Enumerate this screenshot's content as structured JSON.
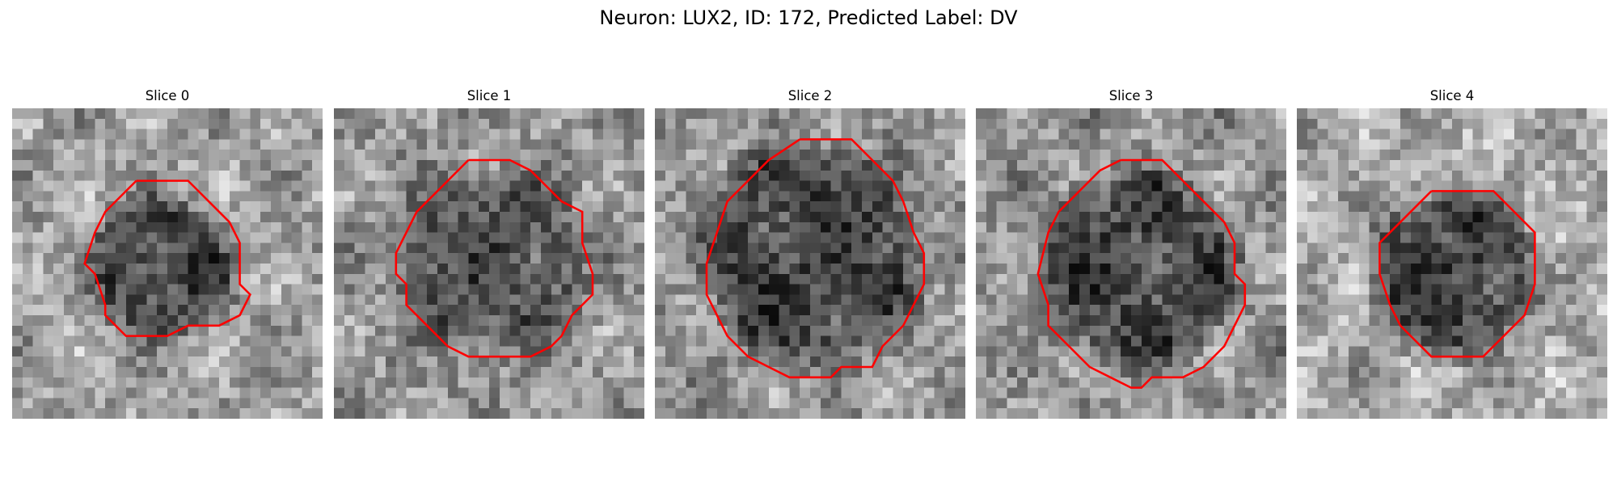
{
  "figure": {
    "title": "Neuron: LUX2, ID: 172, Predicted Label: DV",
    "outline_color": "#ff0000"
  },
  "panels": [
    {
      "title": "Slice 0",
      "image": {
        "grid_size": 30,
        "seed": 11,
        "center": [
          14.5,
          15.5
        ],
        "radius": 6.8,
        "base": 160,
        "inner": 70
      },
      "contour": [
        [
          12,
          7
        ],
        [
          17,
          7
        ],
        [
          18,
          8
        ],
        [
          19,
          9
        ],
        [
          21,
          11
        ],
        [
          22,
          13
        ],
        [
          22,
          17
        ],
        [
          23,
          18
        ],
        [
          22,
          20
        ],
        [
          20,
          21
        ],
        [
          17,
          21
        ],
        [
          15,
          22
        ],
        [
          14,
          22
        ],
        [
          11,
          22
        ],
        [
          10,
          21
        ],
        [
          9,
          20
        ],
        [
          9,
          19
        ],
        [
          8,
          16
        ],
        [
          7,
          15
        ],
        [
          8,
          12
        ],
        [
          9,
          10
        ],
        [
          11,
          8
        ],
        [
          12,
          7
        ]
      ]
    },
    {
      "title": "Slice 1",
      "image": {
        "grid_size": 30,
        "seed": 23,
        "center": [
          15,
          15
        ],
        "radius": 9.0,
        "base": 150,
        "inner": 85
      },
      "contour": [
        [
          13,
          5
        ],
        [
          17,
          5
        ],
        [
          19,
          6
        ],
        [
          22,
          9
        ],
        [
          24,
          10
        ],
        [
          24,
          13
        ],
        [
          25,
          16
        ],
        [
          25,
          18
        ],
        [
          23,
          20
        ],
        [
          22,
          22
        ],
        [
          21,
          23
        ],
        [
          19,
          24
        ],
        [
          13,
          24
        ],
        [
          11,
          23
        ],
        [
          9,
          21
        ],
        [
          7,
          19
        ],
        [
          7,
          17
        ],
        [
          6,
          16
        ],
        [
          6,
          14
        ],
        [
          7,
          12
        ],
        [
          8,
          10
        ],
        [
          9,
          9
        ],
        [
          11,
          7
        ],
        [
          13,
          5
        ]
      ]
    },
    {
      "title": "Slice 2",
      "image": {
        "grid_size": 30,
        "seed": 37,
        "center": [
          15,
          14
        ],
        "radius": 10.5,
        "base": 150,
        "inner": 70
      },
      "contour": [
        [
          14,
          3
        ],
        [
          19,
          3
        ],
        [
          21,
          5
        ],
        [
          23,
          7
        ],
        [
          24,
          9
        ],
        [
          25,
          12
        ],
        [
          26,
          14
        ],
        [
          26,
          17
        ],
        [
          25,
          19
        ],
        [
          24,
          21
        ],
        [
          22,
          23
        ],
        [
          21,
          25
        ],
        [
          18,
          25
        ],
        [
          17,
          26
        ],
        [
          13,
          26
        ],
        [
          11,
          25
        ],
        [
          9,
          24
        ],
        [
          7,
          22
        ],
        [
          6,
          20
        ],
        [
          5,
          18
        ],
        [
          5,
          15
        ],
        [
          6,
          12
        ],
        [
          7,
          9
        ],
        [
          9,
          7
        ],
        [
          11,
          5
        ],
        [
          14,
          3
        ]
      ]
    },
    {
      "title": "Slice 3",
      "image": {
        "grid_size": 30,
        "seed": 53,
        "center": [
          15.5,
          15.5
        ],
        "radius": 9.5,
        "base": 150,
        "inner": 75
      },
      "contour": [
        [
          14,
          5
        ],
        [
          18,
          5
        ],
        [
          20,
          7
        ],
        [
          22,
          9
        ],
        [
          24,
          11
        ],
        [
          25,
          13
        ],
        [
          25,
          16
        ],
        [
          26,
          17
        ],
        [
          26,
          19
        ],
        [
          25,
          21
        ],
        [
          24,
          23
        ],
        [
          22,
          25
        ],
        [
          20,
          26
        ],
        [
          17,
          26
        ],
        [
          16,
          27
        ],
        [
          15,
          27
        ],
        [
          13,
          26
        ],
        [
          11,
          25
        ],
        [
          9,
          23
        ],
        [
          7,
          21
        ],
        [
          7,
          19
        ],
        [
          6,
          16
        ],
        [
          7,
          12
        ],
        [
          8,
          10
        ],
        [
          10,
          8
        ],
        [
          12,
          6
        ],
        [
          14,
          5
        ]
      ]
    },
    {
      "title": "Slice 4",
      "image": {
        "grid_size": 30,
        "seed": 71,
        "center": [
          15,
          16
        ],
        "radius": 8.0,
        "base": 170,
        "inner": 70
      },
      "contour": [
        [
          13,
          8
        ],
        [
          19,
          8
        ],
        [
          21,
          10
        ],
        [
          23,
          12
        ],
        [
          23,
          17
        ],
        [
          22,
          20
        ],
        [
          21,
          21
        ],
        [
          19,
          23
        ],
        [
          18,
          24
        ],
        [
          13,
          24
        ],
        [
          11,
          22
        ],
        [
          10,
          21
        ],
        [
          9,
          19
        ],
        [
          8,
          16
        ],
        [
          8,
          13
        ],
        [
          10,
          11
        ],
        [
          12,
          9
        ],
        [
          13,
          8
        ]
      ]
    }
  ]
}
